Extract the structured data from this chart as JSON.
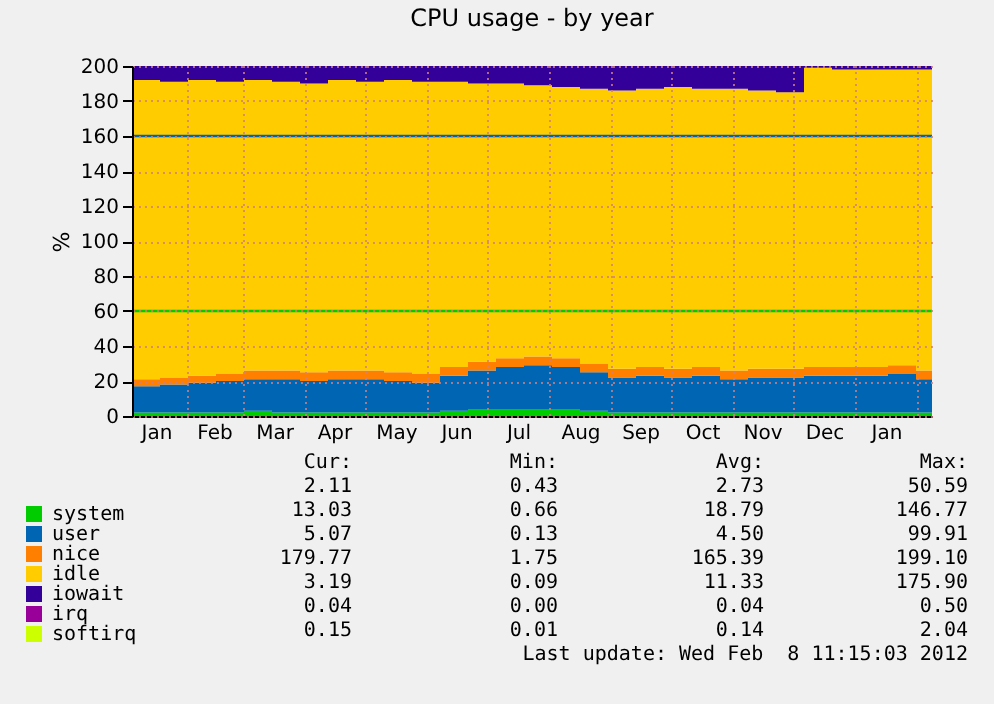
{
  "chart_data": {
    "type": "area",
    "stacked": true,
    "title": "CPU usage - by year",
    "ylabel": "%",
    "x": [
      "2011-01-04",
      "2011-01-18",
      "2011-02-01",
      "2011-02-15",
      "2011-03-01",
      "2011-03-15",
      "2011-03-29",
      "2011-04-12",
      "2011-04-26",
      "2011-05-10",
      "2011-05-24",
      "2011-06-07",
      "2011-06-21",
      "2011-07-05",
      "2011-07-19",
      "2011-08-02",
      "2011-08-16",
      "2011-08-30",
      "2011-09-13",
      "2011-09-27",
      "2011-10-11",
      "2011-10-25",
      "2011-11-08",
      "2011-11-22",
      "2011-12-06",
      "2011-12-20",
      "2012-01-03",
      "2012-01-17",
      "2012-01-31",
      "2012-02-08"
    ],
    "series": [
      {
        "name": "system",
        "color": "#00cc00",
        "values": [
          2,
          2,
          2,
          2,
          3,
          2,
          2,
          2,
          2,
          2,
          2,
          3,
          4,
          4,
          4,
          4,
          3,
          2,
          2,
          2,
          2,
          2,
          2,
          2,
          2,
          2,
          2,
          2,
          2,
          2
        ]
      },
      {
        "name": "user",
        "color": "#0066b3",
        "values": [
          15,
          16,
          17,
          18,
          18,
          19,
          18,
          19,
          19,
          18,
          17,
          20,
          22,
          24,
          25,
          24,
          22,
          20,
          21,
          20,
          21,
          19,
          20,
          20,
          21,
          21,
          21,
          22,
          19,
          13
        ]
      },
      {
        "name": "nice",
        "color": "#ff8000",
        "values": [
          4,
          4,
          4,
          4,
          5,
          5,
          5,
          5,
          5,
          5,
          5,
          5,
          5,
          5,
          5,
          5,
          5,
          5,
          5,
          5,
          5,
          5,
          5,
          5,
          5,
          5,
          5,
          5,
          5,
          5
        ]
      },
      {
        "name": "idle",
        "color": "#ffcc00",
        "values": [
          171,
          169,
          169,
          167,
          166,
          165,
          165,
          166,
          165,
          167,
          167,
          163,
          159,
          157,
          155,
          155,
          157,
          159,
          159,
          161,
          159,
          161,
          159,
          158,
          171,
          170,
          170,
          169,
          172,
          177
        ]
      },
      {
        "name": "iowait",
        "color": "#330099",
        "values": [
          8,
          9,
          8,
          9,
          8,
          9,
          10,
          8,
          9,
          8,
          9,
          9,
          10,
          10,
          11,
          12,
          13,
          14,
          13,
          12,
          13,
          13,
          14,
          15,
          1,
          2,
          2,
          2,
          2,
          3
        ]
      },
      {
        "name": "irq",
        "color": "#990099",
        "values": [
          null,
          null,
          null,
          null,
          null,
          null,
          null,
          null,
          null,
          null,
          null,
          null,
          null,
          null,
          null,
          null,
          null,
          null,
          null,
          null,
          null,
          null,
          null,
          null,
          null,
          null,
          null,
          null,
          null,
          null
        ]
      },
      {
        "name": "softirq",
        "color": "#ccff00",
        "values": [
          null,
          null,
          null,
          null,
          null,
          null,
          null,
          null,
          null,
          null,
          null,
          null,
          null,
          null,
          null,
          null,
          null,
          null,
          null,
          null,
          null,
          null,
          null,
          null,
          null,
          null,
          null,
          null,
          null,
          null
        ]
      }
    ],
    "xlim": [
      "2011-01-04",
      "2012-02-08"
    ],
    "xticks": [
      {
        "value": "2011-01-16",
        "label": "Jan"
      },
      {
        "value": "2011-02-01",
        "label": null
      },
      {
        "value": "2011-02-14",
        "label": "Feb"
      },
      {
        "value": "2011-03-01",
        "label": null
      },
      {
        "value": "2011-03-16",
        "label": "Mar"
      },
      {
        "value": "2011-04-01",
        "label": null
      },
      {
        "value": "2011-04-15",
        "label": "Apr"
      },
      {
        "value": "2011-05-01",
        "label": null
      },
      {
        "value": "2011-05-16",
        "label": "May"
      },
      {
        "value": "2011-06-01",
        "label": null
      },
      {
        "value": "2011-06-15",
        "label": "Jun"
      },
      {
        "value": "2011-07-01",
        "label": null
      },
      {
        "value": "2011-07-16",
        "label": "Jul"
      },
      {
        "value": "2011-08-01",
        "label": null
      },
      {
        "value": "2011-08-16",
        "label": "Aug"
      },
      {
        "value": "2011-09-01",
        "label": null
      },
      {
        "value": "2011-09-15",
        "label": "Sep"
      },
      {
        "value": "2011-10-01",
        "label": null
      },
      {
        "value": "2011-10-16",
        "label": "Oct"
      },
      {
        "value": "2011-11-01",
        "label": null
      },
      {
        "value": "2011-11-15",
        "label": "Nov"
      },
      {
        "value": "2011-12-01",
        "label": null
      },
      {
        "value": "2011-12-16",
        "label": "Dec"
      },
      {
        "value": "2012-01-01",
        "label": null
      },
      {
        "value": "2012-01-16",
        "label": "Jan"
      },
      {
        "value": "2012-02-01",
        "label": null
      }
    ],
    "ylim": [
      0,
      200
    ],
    "yticks": [
      0,
      20,
      40,
      60,
      80,
      100,
      120,
      140,
      160,
      180,
      200
    ],
    "grid": true,
    "legend": "bottom left",
    "ref_lines": [
      {
        "axis": "y",
        "value": 60,
        "color": "#00cc00"
      },
      {
        "axis": "y",
        "value": 160,
        "color": "#0066b3"
      }
    ],
    "annotations": [
      "Cur:",
      "Min:",
      "Avg:",
      "Max:",
      "2.11",
      "0.43",
      "2.73",
      "50.59",
      "13.03",
      "0.66",
      "18.79",
      "146.77",
      "5.07",
      "0.13",
      "4.50",
      "99.91",
      "179.77",
      "1.75",
      "165.39",
      "199.10",
      "3.19",
      "0.09",
      "11.33",
      "175.90",
      "0.04",
      "0.00",
      "0.04",
      "0.50",
      "0.15",
      "0.01",
      "0.14",
      "2.04",
      "Last update: Wed Feb  8 11:15:03 2012"
    ]
  }
}
